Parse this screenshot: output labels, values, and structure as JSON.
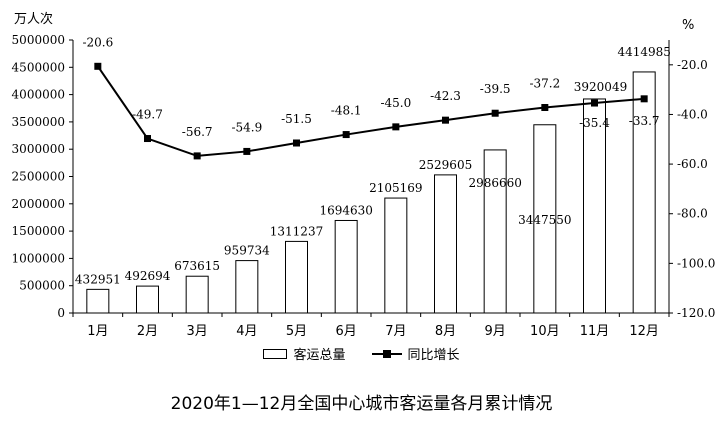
{
  "chart_data": {
    "type": "bar+line",
    "title": "2020年1—12月全国中心城市客运量各月累计情况",
    "left_unit": "万人次",
    "right_unit": "%",
    "categories": [
      "1月",
      "2月",
      "3月",
      "4月",
      "5月",
      "6月",
      "7月",
      "8月",
      "9月",
      "10月",
      "11月",
      "12月"
    ],
    "series": [
      {
        "name": "客运总量",
        "type": "bar",
        "axis": "left",
        "values": [
          432951,
          492694,
          673615,
          959734,
          1311237,
          1694630,
          2105169,
          2529605,
          2986660,
          3447550,
          3920049,
          4414985
        ]
      },
      {
        "name": "同比增长",
        "type": "line",
        "axis": "right",
        "values": [
          -20.6,
          -49.7,
          -56.7,
          -54.9,
          -51.5,
          -48.1,
          -45.0,
          -42.3,
          -39.5,
          -37.2,
          -35.4,
          -33.7
        ]
      }
    ],
    "left_axis": {
      "ylim": [
        0,
        5000000
      ],
      "ticks": [
        "0",
        "500000",
        "1000000",
        "1500000",
        "2000000",
        "2500000",
        "3000000",
        "3500000",
        "4000000",
        "4500000",
        "5000000"
      ]
    },
    "right_axis": {
      "ylim": [
        -120,
        -10
      ],
      "ticks": [
        "-120.0",
        "-100.0",
        "-80.0",
        "-60.0",
        "-40.0",
        "-20.0"
      ]
    },
    "bar_labels": [
      "432951",
      "492694",
      "673615",
      "959734",
      "1311237",
      "1694630",
      "2105169",
      "2529605",
      "2986660",
      "3447550",
      "3920049",
      "4414985"
    ],
    "line_labels": [
      "-20.6",
      "-49.7",
      "-56.7",
      "-54.9",
      "-51.5",
      "-48.1",
      "-45.0",
      "-42.3",
      "-39.5",
      "-37.2",
      "-35.4",
      "-33.7"
    ],
    "legend_position": "bottom",
    "grid": false
  }
}
